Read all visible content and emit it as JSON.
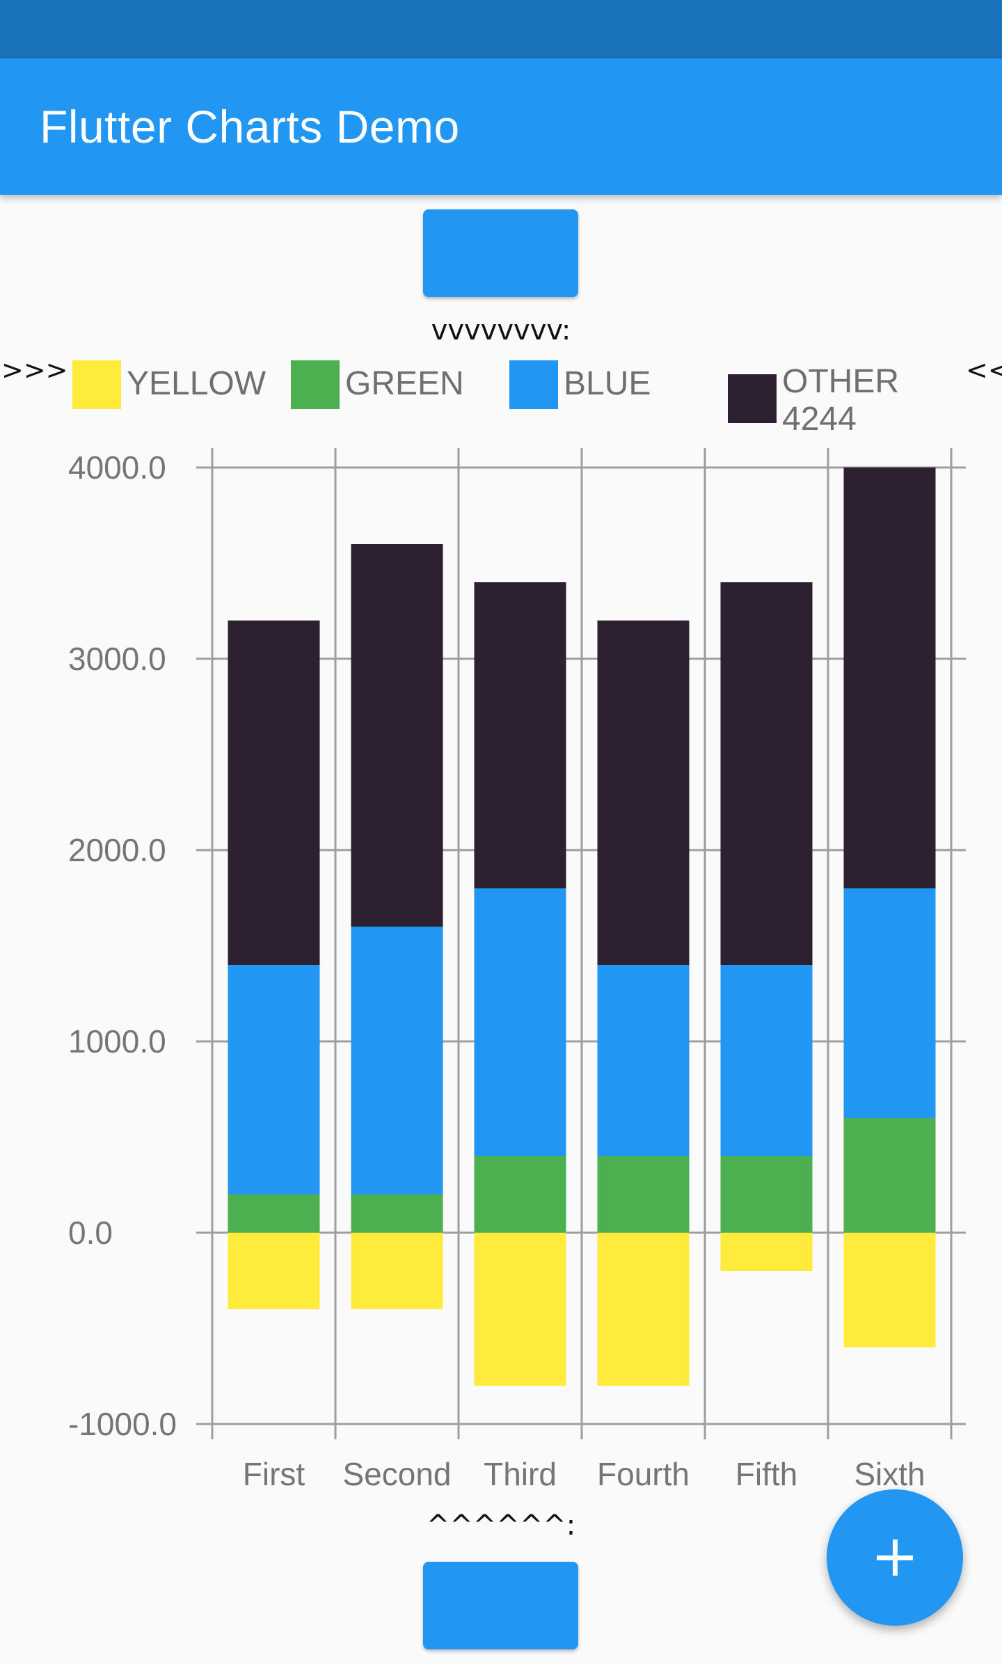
{
  "app": {
    "title": "Flutter Charts Demo"
  },
  "markers": {
    "top": "vvvvvvvv:",
    "bottom": "^^^^^^:"
  },
  "legend": {
    "left_arrows": ">>>",
    "right_arrows": "<<",
    "items": [
      {
        "label": "YELLOW",
        "color": "#ffeb3b"
      },
      {
        "label": "GREEN",
        "color": "#4caf50"
      },
      {
        "label": "BLUE",
        "color": "#2196f3"
      },
      {
        "label": "OTHER\n4244",
        "color": "#2d2030"
      }
    ]
  },
  "colors": {
    "accent": "#2196f3",
    "status_bar": "#1a72bb",
    "grid": "#9e9e9e"
  },
  "fab": {
    "icon": "plus-icon"
  },
  "chart_data": {
    "type": "bar",
    "stacked": true,
    "categories": [
      "First",
      "Second",
      "Third",
      "Fourth",
      "Fifth",
      "Sixth"
    ],
    "series": [
      {
        "name": "YELLOW",
        "color": "#ffeb3b",
        "values": [
          -400,
          -400,
          -800,
          -800,
          -200,
          -600
        ]
      },
      {
        "name": "GREEN",
        "color": "#4caf50",
        "values": [
          200,
          200,
          400,
          400,
          400,
          600
        ]
      },
      {
        "name": "BLUE",
        "color": "#2196f3",
        "values": [
          1200,
          1400,
          1400,
          1000,
          1000,
          1200
        ]
      },
      {
        "name": "OTHER\n4244",
        "color": "#2d2030",
        "values": [
          1800,
          2000,
          1600,
          1800,
          2000,
          2200
        ]
      }
    ],
    "yticks": [
      "4000.0",
      "3000.0",
      "2000.0",
      "1000.0",
      "0.0",
      "-1000.0"
    ],
    "ylim": [
      -1000,
      4000
    ],
    "grid": true,
    "legend_position": "top"
  }
}
